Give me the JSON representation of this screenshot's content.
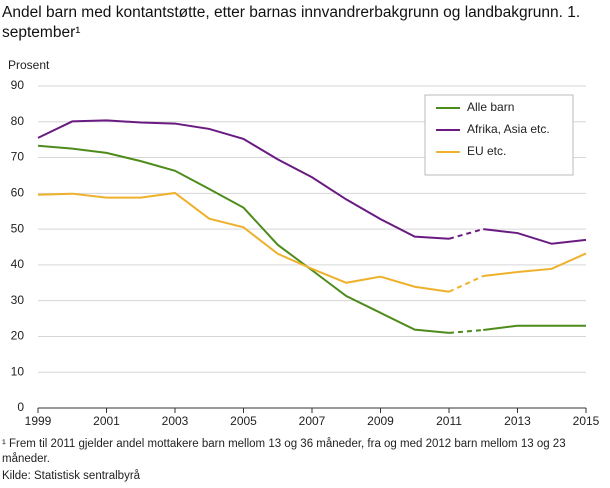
{
  "chart_data": {
    "type": "line",
    "title": "Andel barn med kontantstøtte, etter barnas innvandrerbakgrunn og landbakgrunn. 1. september¹",
    "y_label": "Prosent",
    "footnote": "¹ Frem til 2011 gjelder andel mottakere barn mellom 13 og 36 måneder, fra og med 2012 barn mellom 13 og 23 måneder.",
    "source": "Kilde: Statistisk sentralbyrå",
    "x": [
      1999,
      2000,
      2001,
      2002,
      2003,
      2004,
      2005,
      2006,
      2007,
      2008,
      2009,
      2010,
      2011,
      2012,
      2013,
      2014,
      2015
    ],
    "series": [
      {
        "name": "Alle barn",
        "color": "#4d8c1c",
        "values": [
          73.3,
          72.5,
          71.3,
          69.0,
          66.3,
          61.2,
          56.0,
          45.6,
          38.5,
          31.3,
          26.6,
          21.9,
          21.0,
          21.8,
          23.0,
          23.0,
          23.0
        ]
      },
      {
        "name": "Afrika, Asia etc.",
        "color": "#6a1b82",
        "values": [
          75.5,
          80.1,
          80.4,
          79.8,
          79.5,
          78.0,
          75.2,
          69.5,
          64.5,
          58.3,
          52.8,
          47.9,
          47.3,
          50.0,
          48.9,
          45.9,
          47.0
        ]
      },
      {
        "name": "EU etc.",
        "color": "#eeb12c",
        "values": [
          59.6,
          59.9,
          58.8,
          58.8,
          60.1,
          52.9,
          50.5,
          43.1,
          38.9,
          35.0,
          36.7,
          33.9,
          32.5,
          36.9,
          38.0,
          38.9,
          43.2
        ]
      }
    ],
    "dashed_segment": [
      2011,
      2012
    ],
    "xlim": [
      1999,
      2015
    ],
    "xticks": [
      1999,
      2001,
      2003,
      2005,
      2007,
      2009,
      2011,
      2013,
      2015
    ],
    "ylim": [
      0,
      90
    ],
    "yticks": [
      0,
      10,
      20,
      30,
      40,
      50,
      60,
      70,
      80,
      90
    ],
    "grid": true,
    "legend": "upper right"
  }
}
